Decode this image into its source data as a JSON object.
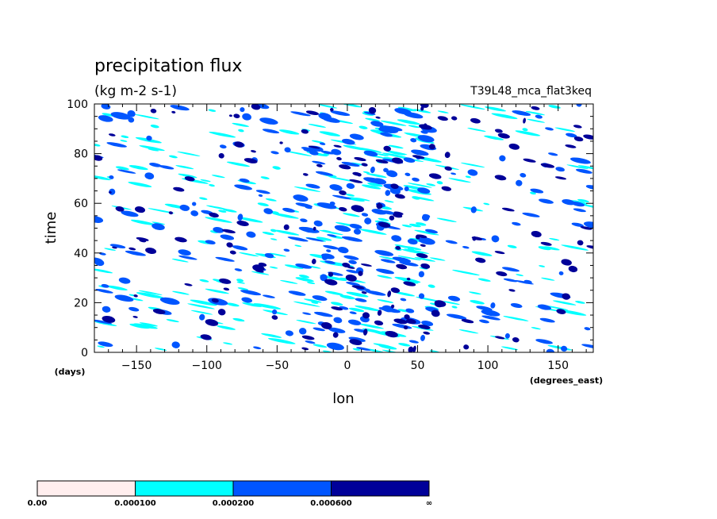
{
  "chart_data": {
    "type": "heatmap",
    "title": "precipitation flux",
    "units": "(kg m-2 s-1)",
    "run_label": "T39L48_mca_flat3keq",
    "xlabel": "lon",
    "x_units": "(degrees_east)",
    "ylabel": "time",
    "y_units": "(days)",
    "xlim": [
      -180,
      175
    ],
    "ylim": [
      0,
      100
    ],
    "x_ticks": [
      -150,
      -100,
      -50,
      0,
      50,
      100,
      150
    ],
    "x_tick_labels": [
      "−150",
      "−100",
      "−50",
      "0",
      "50",
      "100",
      "150"
    ],
    "y_ticks": [
      0,
      20,
      40,
      60,
      80,
      100
    ],
    "y_tick_labels": [
      "0",
      "20",
      "40",
      "60",
      "80",
      "100"
    ],
    "grid": false,
    "colorbar": {
      "boundaries": [
        "0.00",
        "0.000100",
        "0.000200",
        "0.000600",
        "∞"
      ],
      "colors": [
        "#ffeeee",
        "#00ffff",
        "#0055ff",
        "#000099"
      ]
    }
  }
}
